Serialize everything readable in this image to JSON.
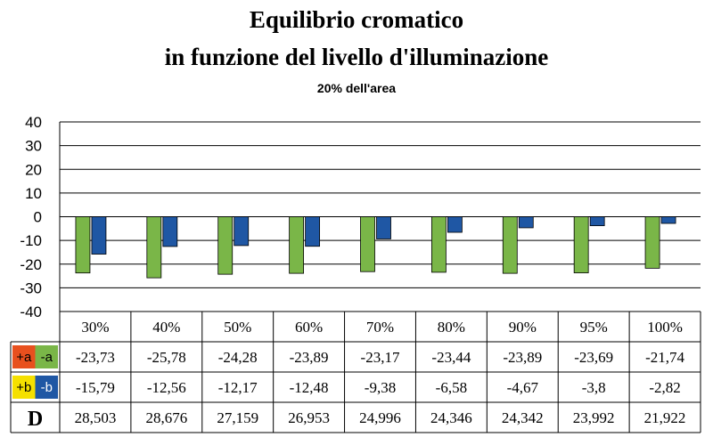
{
  "chart_data": {
    "type": "bar",
    "title_lines": [
      "Equilibrio cromatico",
      "in funzione del livello d'illuminazione"
    ],
    "subtitle": "20% dell'area",
    "categories": [
      "30%",
      "40%",
      "50%",
      "60%",
      "70%",
      "80%",
      "90%",
      "95%",
      "100%"
    ],
    "ylim": [
      -40,
      40
    ],
    "yticks": [
      "40",
      "30",
      "20",
      "10",
      "0",
      "-10",
      "-20",
      "-30",
      "-40"
    ],
    "grid": true,
    "series": [
      {
        "name": "-a",
        "legend_pos": "+a",
        "color": "#7ab648",
        "values": [
          -23.73,
          -25.78,
          -24.28,
          -23.89,
          -23.17,
          -23.44,
          -23.89,
          -23.69,
          -21.74
        ],
        "labels": [
          "-23,73",
          "-25,78",
          "-24,28",
          "-23,89",
          "-23,17",
          "-23,44",
          "-23,89",
          "-23,69",
          "-21,74"
        ]
      },
      {
        "name": "-b",
        "legend_pos": "+b",
        "color": "#1f57a4",
        "values": [
          -15.79,
          -12.56,
          -12.17,
          -12.48,
          -9.38,
          -6.58,
          -4.67,
          -3.8,
          -2.82
        ],
        "labels": [
          "-15,79",
          "-12,56",
          "-12,17",
          "-12,48",
          "-9,38",
          "-6,58",
          "-4,67",
          "-3,8",
          "-2,82"
        ]
      }
    ],
    "d_row": {
      "label": "D",
      "values": [
        "28,503",
        "28,676",
        "27,159",
        "26,953",
        "24,996",
        "24,346",
        "24,342",
        "23,992",
        "21,922"
      ]
    },
    "legend_colors": {
      "plus_a": "#e8501e",
      "minus_a": "#7ab648",
      "plus_b": "#f5e000",
      "minus_b": "#1f57a4"
    }
  }
}
